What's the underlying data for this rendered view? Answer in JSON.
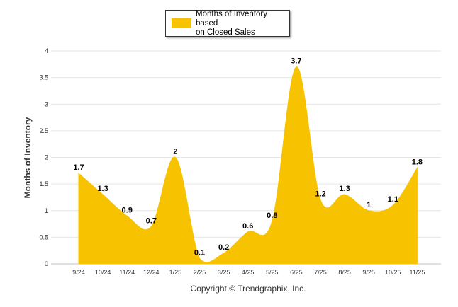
{
  "chart_data": {
    "type": "area",
    "categories": [
      "9/24",
      "10/24",
      "11/24",
      "12/24",
      "1/25",
      "2/25",
      "3/25",
      "4/25",
      "5/25",
      "6/25",
      "7/25",
      "8/25",
      "9/25",
      "10/25",
      "11/25"
    ],
    "series": [
      {
        "name": "Months of Inventory based on Closed Sales",
        "values": [
          1.7,
          1.3,
          0.9,
          0.7,
          2,
          0.1,
          0.2,
          0.6,
          0.8,
          3.7,
          1.2,
          1.3,
          1,
          1.1,
          1.8
        ],
        "labels": [
          "1.7",
          "1.3",
          "0.9",
          "0.7",
          "2",
          "0.1",
          "0.2",
          "0.6",
          "0.8",
          "3.7",
          "1.2",
          "1.3",
          "1",
          "1.1",
          "1.8"
        ],
        "color": "#F7C200"
      }
    ],
    "ylabel": "Months of Inventory",
    "xlabel": "",
    "ylim": [
      0,
      4
    ],
    "yticks": [
      0,
      0.5,
      1,
      1.5,
      2,
      2.5,
      3,
      3.5,
      4
    ],
    "ytick_labels": [
      "0",
      "0.5",
      "1",
      "1.5",
      "2",
      "2.5",
      "3",
      "3.5",
      "4"
    ],
    "grid": true,
    "legend_position": "top-center"
  },
  "legend": {
    "label_line1": "Months of Inventory based",
    "label_line2": "on Closed Sales"
  },
  "footer": {
    "copyright": "Copyright © Trendgraphix, Inc."
  }
}
